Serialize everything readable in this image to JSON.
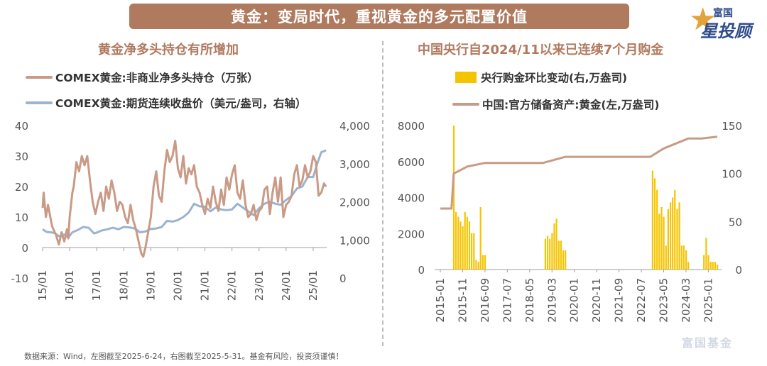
{
  "banner": {
    "title": "黄金：变局时代，重视黄金的多元配置价值"
  },
  "logo": {
    "line1": "富国",
    "line2": "星投顾"
  },
  "left": {
    "title": "黄金净多头持仓有所增加",
    "legend": [
      "COMEX黄金:非商业净多头持仓（万张）",
      "COMEX黄金:期货连续收盘价（美元/盎司，右轴）"
    ]
  },
  "right": {
    "title": "中国央行自2024/11以来已连续7个月购金",
    "legend": [
      "央行购金环比变动(右,万盎司)",
      "中国:官方储备资产:黄金(左,万盎司)"
    ]
  },
  "footer": {
    "source": "数据来源：Wind，左图截至2025-6-24，右图截至2025-5-31。基金有风险，投资须谨慎！"
  },
  "watermark": "富国基金",
  "colors": {
    "positions": "#c99a85",
    "price": "#9ab3cf",
    "bars": "#f5c400",
    "reserves": "#c99a85",
    "accent": "#b07a5f"
  },
  "chart_data": [
    {
      "type": "line",
      "title": "黄金净多头持仓有所增加",
      "x_ticks": [
        "15/01",
        "16/01",
        "17/01",
        "18/01",
        "19/01",
        "20/01",
        "21/01",
        "22/01",
        "23/01",
        "24/01",
        "25/01"
      ],
      "ylim": [
        -10,
        40
      ],
      "y_ticks": [
        "-10",
        "0",
        "10",
        "20",
        "30",
        "40"
      ],
      "y2lim": [
        0,
        4000
      ],
      "y2_ticks": [
        "0",
        "1,000",
        "2,000",
        "3,000",
        "4,000"
      ],
      "grid": false,
      "legend": "top",
      "series": [
        {
          "name": "COMEX黄金:非商业净多头持仓（万张）",
          "axis": "left",
          "x": [
            2015.0,
            2015.04,
            2015.12,
            2015.2,
            2015.35,
            2015.5,
            2015.6,
            2015.7,
            2015.8,
            2015.9,
            2015.95,
            2016.0,
            2016.1,
            2016.15,
            2016.25,
            2016.35,
            2016.45,
            2016.55,
            2016.65,
            2016.75,
            2016.85,
            2016.95,
            2017.05,
            2017.15,
            2017.25,
            2017.35,
            2017.45,
            2017.55,
            2017.65,
            2017.75,
            2017.85,
            2017.95,
            2018.05,
            2018.15,
            2018.25,
            2018.35,
            2018.45,
            2018.55,
            2018.65,
            2018.72,
            2018.8,
            2018.9,
            2019.0,
            2019.1,
            2019.2,
            2019.3,
            2019.4,
            2019.5,
            2019.6,
            2019.7,
            2019.8,
            2019.9,
            2020.0,
            2020.1,
            2020.2,
            2020.3,
            2020.4,
            2020.5,
            2020.6,
            2020.7,
            2020.8,
            2020.9,
            2021.0,
            2021.1,
            2021.2,
            2021.3,
            2021.4,
            2021.5,
            2021.6,
            2021.7,
            2021.8,
            2021.9,
            2022.0,
            2022.1,
            2022.2,
            2022.3,
            2022.4,
            2022.5,
            2022.6,
            2022.7,
            2022.8,
            2022.9,
            2023.0,
            2023.1,
            2023.2,
            2023.3,
            2023.4,
            2023.5,
            2023.6,
            2023.7,
            2023.8,
            2023.9,
            2024.0,
            2024.1,
            2024.2,
            2024.3,
            2024.4,
            2024.5,
            2024.6,
            2024.7,
            2024.8,
            2024.9,
            2025.0,
            2025.1,
            2025.2,
            2025.3,
            2025.4,
            2025.48
          ],
          "values": [
            13,
            18,
            10,
            14,
            7,
            4,
            1,
            5,
            2,
            6,
            3,
            10,
            18,
            20,
            28,
            25,
            30,
            27,
            30,
            22,
            15,
            11,
            15,
            18,
            12,
            20,
            16,
            22,
            18,
            12,
            15,
            14,
            10,
            8,
            14,
            9,
            6,
            2,
            -2,
            -3,
            0,
            5,
            10,
            20,
            25,
            17,
            15,
            25,
            32,
            28,
            30,
            35,
            26,
            23,
            30,
            21,
            26,
            24,
            27,
            20,
            18,
            14,
            11,
            16,
            13,
            20,
            15,
            12,
            19,
            14,
            23,
            19,
            24,
            27,
            18,
            16,
            22,
            14,
            10,
            11,
            14,
            9,
            12,
            13,
            19,
            20,
            11,
            18,
            23,
            15,
            23,
            10,
            14,
            15,
            17,
            24,
            27,
            20,
            22,
            27,
            23,
            25,
            30,
            28,
            17,
            18,
            21,
            20
          ]
        },
        {
          "name": "COMEX黄金:期货连续收盘价（美元/盎司，右轴）",
          "axis": "right",
          "x": [
            2015.0,
            2015.15,
            2015.3,
            2015.45,
            2015.6,
            2015.8,
            2015.95,
            2016.1,
            2016.3,
            2016.5,
            2016.7,
            2016.9,
            2017.0,
            2017.2,
            2017.4,
            2017.6,
            2017.8,
            2018.0,
            2018.2,
            2018.4,
            2018.6,
            2018.8,
            2019.0,
            2019.2,
            2019.4,
            2019.6,
            2019.8,
            2020.0,
            2020.2,
            2020.4,
            2020.6,
            2020.8,
            2021.0,
            2021.2,
            2021.4,
            2021.6,
            2021.8,
            2022.0,
            2022.2,
            2022.4,
            2022.6,
            2022.8,
            2023.0,
            2023.2,
            2023.4,
            2023.6,
            2023.8,
            2024.0,
            2024.2,
            2024.4,
            2024.6,
            2024.8,
            2025.0,
            2025.15,
            2025.3,
            2025.48
          ],
          "values": [
            1280,
            1210,
            1200,
            1180,
            1100,
            1140,
            1060,
            1200,
            1260,
            1340,
            1320,
            1170,
            1190,
            1250,
            1280,
            1320,
            1280,
            1340,
            1330,
            1300,
            1200,
            1220,
            1290,
            1300,
            1340,
            1500,
            1480,
            1520,
            1600,
            1720,
            1950,
            1880,
            1870,
            1750,
            1850,
            1800,
            1780,
            1800,
            1950,
            1850,
            1750,
            1650,
            1830,
            1950,
            2000,
            1950,
            1920,
            2050,
            2150,
            2350,
            2400,
            2650,
            2650,
            3000,
            3300,
            3350
          ]
        }
      ]
    },
    {
      "type": "bar",
      "title": "中国央行自2024/11以来已连续7个月购金",
      "x_ticks": [
        "2015-01",
        "2015-11",
        "2016-09",
        "2017-07",
        "2018-05",
        "2019-03",
        "2020-01",
        "2020-11",
        "2021-09",
        "2022-07",
        "2023-05",
        "2024-03",
        "2025-01"
      ],
      "ylim": [
        0,
        8000
      ],
      "y_ticks": [
        "0",
        "2000",
        "4000",
        "6000",
        "8000"
      ],
      "y2lim": [
        0,
        150
      ],
      "y2_ticks": [
        "0",
        "50",
        "100",
        "150"
      ],
      "grid": false,
      "legend": "top",
      "series": [
        {
          "name": "央行购金环比变动(右,万盎司)",
          "axis": "right",
          "type": "bar",
          "x": [
            "2015-07",
            "2015-08",
            "2015-09",
            "2015-10",
            "2015-11",
            "2015-12",
            "2016-01",
            "2016-02",
            "2016-03",
            "2016-04",
            "2016-05",
            "2016-06",
            "2016-07",
            "2016-08",
            "2016-09",
            "2018-12",
            "2019-01",
            "2019-02",
            "2019-03",
            "2019-04",
            "2019-05",
            "2019-06",
            "2019-07",
            "2019-08",
            "2019-09",
            "2022-12",
            "2023-01",
            "2023-02",
            "2023-03",
            "2023-04",
            "2023-05",
            "2023-06",
            "2023-07",
            "2023-08",
            "2023-09",
            "2023-10",
            "2023-11",
            "2023-12",
            "2024-01",
            "2024-02",
            "2024-03",
            "2024-04",
            "2024-11",
            "2024-12",
            "2025-01",
            "2025-02",
            "2025-03",
            "2025-04",
            "2025-05"
          ],
          "values": [
            150,
            60,
            55,
            50,
            45,
            60,
            55,
            50,
            38,
            38,
            10,
            8,
            65,
            15,
            15,
            32,
            35,
            32,
            38,
            48,
            53,
            30,
            30,
            20,
            20,
            103,
            95,
            83,
            58,
            65,
            55,
            25,
            63,
            70,
            75,
            83,
            63,
            70,
            25,
            25,
            20,
            8,
            15,
            33,
            15,
            8,
            8,
            8,
            5
          ]
        },
        {
          "name": "中国:官方储备资产:黄金(左,万盎司)",
          "axis": "left",
          "type": "line",
          "x": [
            "2015-01",
            "2015-06",
            "2015-07",
            "2016-01",
            "2016-09",
            "2018-11",
            "2019-09",
            "2022-11",
            "2023-05",
            "2024-04",
            "2024-10",
            "2025-05"
          ],
          "values": [
            3389,
            3389,
            5332,
            5718,
            5924,
            5924,
            6264,
            6264,
            6727,
            7280,
            7280,
            7383
          ]
        }
      ]
    }
  ]
}
